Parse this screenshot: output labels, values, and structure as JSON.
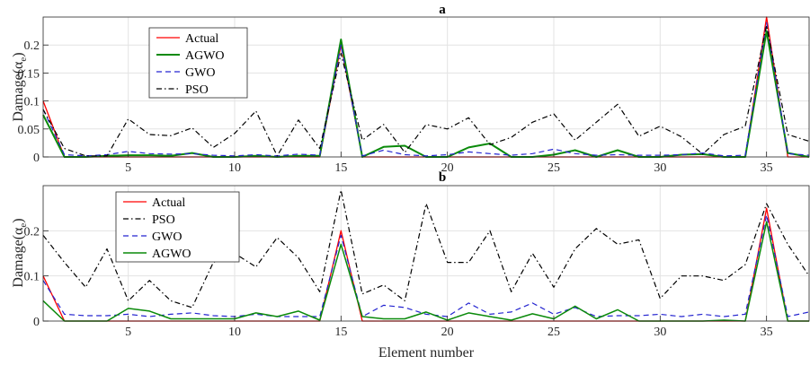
{
  "chart_data": [
    {
      "type": "line",
      "title": "a",
      "xlabel": "",
      "ylabel": "Damage(α",
      "ylabel_sub": "e",
      "ylabel_close": ")",
      "xlim": [
        1,
        37
      ],
      "ylim": [
        0,
        0.25
      ],
      "xticks": [
        5,
        10,
        15,
        20,
        25,
        30,
        35
      ],
      "yticks": [
        0,
        0.05,
        0.1,
        0.15,
        0.2
      ],
      "grid": true,
      "legend_position": "top-left",
      "x": [
        1,
        2,
        3,
        4,
        5,
        6,
        7,
        8,
        9,
        10,
        11,
        12,
        13,
        14,
        15,
        16,
        17,
        18,
        19,
        20,
        21,
        22,
        23,
        24,
        25,
        26,
        27,
        28,
        29,
        30,
        31,
        32,
        33,
        34,
        35,
        36,
        37
      ],
      "series": [
        {
          "name": "Actual",
          "color": "#ff0000",
          "dash": "solid",
          "width": 1.3,
          "values": [
            0.1,
            0,
            0,
            0,
            0,
            0,
            0,
            0,
            0,
            0,
            0,
            0,
            0,
            0,
            0.2,
            0,
            0,
            0,
            0,
            0,
            0,
            0,
            0,
            0,
            0,
            0,
            0,
            0,
            0,
            0,
            0,
            0,
            0,
            0,
            0.25,
            0,
            0
          ]
        },
        {
          "name": "AGWO",
          "color": "#0a8a0a",
          "dash": "solid",
          "width": 2.0,
          "values": [
            0.075,
            0,
            0,
            0.002,
            0.003,
            0.003,
            0.002,
            0.007,
            0,
            0,
            0.002,
            0,
            0.002,
            0.002,
            0.21,
            0,
            0.018,
            0.02,
            0,
            0,
            0.017,
            0.024,
            0,
            0,
            0.004,
            0.012,
            0,
            0.012,
            0,
            0,
            0.004,
            0.005,
            0,
            0,
            0.225,
            0.007,
            0
          ]
        },
        {
          "name": "GWO",
          "color": "#2424d0",
          "dash": "6,4",
          "width": 1.2,
          "values": [
            0.085,
            0.004,
            0.002,
            0.004,
            0.01,
            0.006,
            0.005,
            0.006,
            0.003,
            0.002,
            0.004,
            0.002,
            0.005,
            0.003,
            0.2,
            0.002,
            0.012,
            0.004,
            0.002,
            0.004,
            0.009,
            0.006,
            0.003,
            0.006,
            0.014,
            0.006,
            0.003,
            0.004,
            0.003,
            0.003,
            0.004,
            0.007,
            0.002,
            0.003,
            0.24,
            0.006,
            0.003
          ]
        },
        {
          "name": "PSO",
          "color": "#000000",
          "dash": "6,3,1.5,3",
          "width": 1.2,
          "values": [
            0.085,
            0.015,
            0.002,
            0.002,
            0.068,
            0.04,
            0.038,
            0.052,
            0.017,
            0.042,
            0.082,
            0.002,
            0.066,
            0.015,
            0.185,
            0.03,
            0.058,
            0.008,
            0.058,
            0.05,
            0.07,
            0.022,
            0.035,
            0.062,
            0.077,
            0.03,
            0.062,
            0.094,
            0.037,
            0.055,
            0.036,
            0.005,
            0.04,
            0.055,
            0.235,
            0.04,
            0.028
          ]
        }
      ]
    },
    {
      "type": "line",
      "title": "b",
      "xlabel": "Element number",
      "ylabel": "Damage(α",
      "ylabel_sub": "e",
      "ylabel_close": ")",
      "xlim": [
        1,
        37
      ],
      "ylim": [
        0,
        0.3
      ],
      "xticks": [
        5,
        10,
        15,
        20,
        25,
        30,
        35
      ],
      "yticks": [
        0,
        0.1,
        0.2
      ],
      "grid": true,
      "legend_position": "top-left",
      "x": [
        1,
        2,
        3,
        4,
        5,
        6,
        7,
        8,
        9,
        10,
        11,
        12,
        13,
        14,
        15,
        16,
        17,
        18,
        19,
        20,
        21,
        22,
        23,
        24,
        25,
        26,
        27,
        28,
        29,
        30,
        31,
        32,
        33,
        34,
        35,
        36,
        37
      ],
      "series": [
        {
          "name": "Actual",
          "color": "#ff0000",
          "dash": "solid",
          "width": 1.3,
          "values": [
            0.1,
            0,
            0,
            0,
            0,
            0,
            0,
            0,
            0,
            0,
            0,
            0,
            0,
            0,
            0.2,
            0,
            0,
            0,
            0,
            0,
            0,
            0,
            0,
            0,
            0,
            0,
            0,
            0,
            0,
            0,
            0,
            0,
            0,
            0,
            0.25,
            0,
            0
          ]
        },
        {
          "name": "PSO",
          "color": "#000000",
          "dash": "6,3,1.5,3",
          "width": 1.2,
          "values": [
            0.19,
            0.13,
            0.075,
            0.16,
            0.045,
            0.09,
            0.045,
            0.03,
            0.13,
            0.15,
            0.12,
            0.185,
            0.14,
            0.065,
            0.29,
            0.06,
            0.08,
            0.045,
            0.26,
            0.13,
            0.13,
            0.2,
            0.065,
            0.15,
            0.075,
            0.16,
            0.205,
            0.17,
            0.18,
            0.05,
            0.1,
            0.1,
            0.09,
            0.125,
            0.26,
            0.17,
            0.1
          ]
        },
        {
          "name": "GWO",
          "color": "#2424d0",
          "dash": "6,4",
          "width": 1.2,
          "values": [
            0.09,
            0.015,
            0.012,
            0.012,
            0.015,
            0.01,
            0.015,
            0.018,
            0.012,
            0.01,
            0.015,
            0.01,
            0.01,
            0.01,
            0.19,
            0.01,
            0.035,
            0.03,
            0.015,
            0.01,
            0.04,
            0.015,
            0.02,
            0.04,
            0.015,
            0.03,
            0.01,
            0.012,
            0.012,
            0.015,
            0.01,
            0.015,
            0.01,
            0.015,
            0.235,
            0.01,
            0.02
          ]
        },
        {
          "name": "AGWO",
          "color": "#0a8a0a",
          "dash": "solid",
          "width": 1.5,
          "values": [
            0.045,
            0,
            0,
            0,
            0.028,
            0.022,
            0.005,
            0.005,
            0.005,
            0.005,
            0.018,
            0.01,
            0.022,
            0.002,
            0.17,
            0.01,
            0.005,
            0.005,
            0.02,
            0.002,
            0.018,
            0.01,
            0.002,
            0.016,
            0.005,
            0.033,
            0.005,
            0.025,
            0,
            0,
            0,
            0,
            0.002,
            0,
            0.22,
            0,
            0
          ]
        }
      ]
    }
  ]
}
